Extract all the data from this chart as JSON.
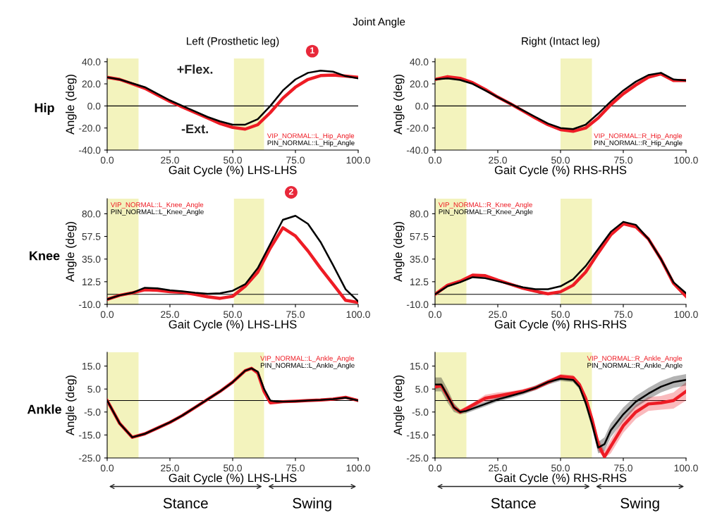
{
  "chart_data": [
    {
      "type": "line",
      "title": "Left (Prosthetic leg)",
      "xlabel": "Gait Cycle (%) LHS-LHS",
      "ylabel": "Angle (deg)",
      "annotations": [
        "Joint Angle",
        "Hip",
        "+Flex.",
        "-Ext.",
        "1"
      ],
      "x": [
        0,
        5,
        10,
        15,
        20,
        25,
        30,
        35,
        40,
        45,
        50,
        55,
        60,
        65,
        70,
        75,
        80,
        85,
        90,
        95,
        100
      ],
      "xlim": [
        0,
        100
      ],
      "xticks": [
        {
          "value": 0,
          "label": "0.0"
        },
        {
          "value": 25,
          "label": "25.0"
        },
        {
          "value": 50,
          "label": "50.0"
        },
        {
          "value": 75,
          "label": "75.0"
        },
        {
          "value": 100,
          "label": "100.0"
        }
      ],
      "ylim": [
        -40,
        43
      ],
      "yticks": [
        {
          "value": -40,
          "label": "-40.0"
        },
        {
          "value": -20,
          "label": "-20.0"
        },
        {
          "value": 0,
          "label": "0.0"
        },
        {
          "value": 20,
          "label": "20.0"
        },
        {
          "value": 40,
          "label": "40.0"
        }
      ],
      "bands": [
        {
          "axis": "x",
          "from": 0,
          "to": 12.5,
          "color": "#f3f3bd"
        },
        {
          "axis": "x",
          "from": 50.5,
          "to": 62.5,
          "color": "#f3f3bd"
        }
      ],
      "ref_lines": [
        {
          "axis": "y",
          "value": 0,
          "color": "#000000"
        }
      ],
      "legend": "bottom right",
      "grid": false,
      "marker": "none",
      "line_style": "solid",
      "series": [
        {
          "name": "VIP_NORMAL::L_Hip_Angle",
          "color": "#ee1c25",
          "values": [
            26,
            24,
            20,
            16,
            10,
            4,
            -1,
            -6,
            -11,
            -16,
            -19.5,
            -21,
            -17,
            -6,
            7,
            17,
            24,
            27.5,
            28,
            27,
            26
          ]
        },
        {
          "name": "PIN_NORMAL::L_Hip_Angle",
          "color": "#000000",
          "values": [
            26,
            24,
            20.5,
            17,
            11,
            5,
            0,
            -5,
            -10,
            -14,
            -17,
            -17,
            -12,
            0,
            14,
            24,
            30,
            32,
            31,
            27,
            25
          ]
        }
      ]
    },
    {
      "type": "line",
      "title": "Right (Intact leg)",
      "xlabel": "Gait Cycle (%) RHS-RHS",
      "ylabel": "Angle (deg)",
      "x": [
        0,
        5,
        10,
        15,
        20,
        25,
        30,
        35,
        40,
        45,
        50,
        55,
        60,
        65,
        70,
        75,
        80,
        85,
        90,
        95,
        100
      ],
      "xlim": [
        0,
        100
      ],
      "xticks": [
        {
          "value": 0,
          "label": "0.0"
        },
        {
          "value": 25,
          "label": "25.0"
        },
        {
          "value": 50,
          "label": "50.0"
        },
        {
          "value": 75,
          "label": "75.0"
        },
        {
          "value": 100,
          "label": "100.0"
        }
      ],
      "ylim": [
        -40,
        43
      ],
      "yticks": [
        {
          "value": -40,
          "label": "-40.0"
        },
        {
          "value": -20,
          "label": "-20.0"
        },
        {
          "value": 0,
          "label": "0.0"
        },
        {
          "value": 20,
          "label": "20.0"
        },
        {
          "value": 40,
          "label": "40.0"
        }
      ],
      "bands": [
        {
          "axis": "x",
          "from": 0,
          "to": 12.5,
          "color": "#f3f3bd"
        },
        {
          "axis": "x",
          "from": 50,
          "to": 62.5,
          "color": "#f3f3bd"
        }
      ],
      "ref_lines": [
        {
          "axis": "y",
          "value": 0,
          "color": "#000000"
        }
      ],
      "legend": "bottom right",
      "grid": false,
      "marker": "none",
      "line_style": "solid",
      "series": [
        {
          "name": "VIP_NORMAL::R_Hip_Angle",
          "color": "#ee1c25",
          "values": [
            24,
            26.5,
            25,
            21,
            15,
            8,
            2,
            -4.5,
            -11,
            -17,
            -21.5,
            -23,
            -20,
            -11,
            1,
            11,
            19,
            26,
            29,
            23,
            23
          ]
        },
        {
          "name": "PIN_NORMAL::R_Hip_Angle",
          "color": "#000000",
          "values": [
            24,
            25,
            23.5,
            20,
            14,
            8,
            2,
            -4,
            -10,
            -16,
            -20,
            -21,
            -17,
            -7,
            4,
            14,
            22,
            28,
            30,
            24,
            23
          ]
        }
      ]
    },
    {
      "type": "line",
      "xlabel": "Gait Cycle (%) LHS-LHS",
      "ylabel": "Angle (deg)",
      "annotations": [
        "Knee",
        "2"
      ],
      "x": [
        0,
        5,
        10,
        15,
        20,
        25,
        30,
        35,
        40,
        45,
        50,
        55,
        60,
        65,
        70,
        75,
        80,
        85,
        90,
        95,
        100
      ],
      "xlim": [
        0,
        100
      ],
      "xticks": [
        {
          "value": 0,
          "label": "0.0"
        },
        {
          "value": 25,
          "label": "25.0"
        },
        {
          "value": 50,
          "label": "50.0"
        },
        {
          "value": 75,
          "label": "75.0"
        },
        {
          "value": 100,
          "label": "100.0"
        }
      ],
      "ylim": [
        -10,
        95
      ],
      "yticks": [
        {
          "value": -10,
          "label": "-10.0"
        },
        {
          "value": 12.5,
          "label": "12.5"
        },
        {
          "value": 35,
          "label": "35.0"
        },
        {
          "value": 57.5,
          "label": "57.5"
        },
        {
          "value": 80,
          "label": "80.0"
        }
      ],
      "bands": [
        {
          "axis": "x",
          "from": 0,
          "to": 12.5,
          "color": "#f3f3bd"
        },
        {
          "axis": "x",
          "from": 50.5,
          "to": 62.5,
          "color": "#f3f3bd"
        }
      ],
      "ref_lines": [
        {
          "axis": "y",
          "value": 0,
          "color": "#000000"
        }
      ],
      "legend": "top left",
      "grid": false,
      "marker": "none",
      "line_style": "solid",
      "series": [
        {
          "name": "VIP_NORMAL::L_Knee_Angle",
          "color": "#ee1c25",
          "values": [
            -5,
            -1,
            1.5,
            4.5,
            4,
            2.5,
            2,
            0,
            -2.5,
            -4,
            -2,
            8,
            22,
            46,
            66,
            58,
            43,
            26,
            10,
            -6,
            -8
          ]
        },
        {
          "name": "PIN_NORMAL::L_Knee_Angle",
          "color": "#000000",
          "values": [
            -5,
            -1,
            1.5,
            6.5,
            6,
            4,
            3,
            1.5,
            0.5,
            1,
            3.5,
            10,
            26,
            50,
            74,
            78,
            70,
            52,
            29,
            5,
            -7
          ]
        }
      ]
    },
    {
      "type": "line",
      "xlabel": "Gait Cycle (%) RHS-RHS",
      "ylabel": "Angle (deg)",
      "x": [
        0,
        5,
        10,
        15,
        20,
        25,
        30,
        35,
        40,
        45,
        50,
        55,
        60,
        65,
        70,
        75,
        80,
        85,
        90,
        95,
        100
      ],
      "xlim": [
        0,
        100
      ],
      "xticks": [
        {
          "value": 0,
          "label": "0.0"
        },
        {
          "value": 25,
          "label": "25.0"
        },
        {
          "value": 50,
          "label": "50.0"
        },
        {
          "value": 75,
          "label": "75.0"
        },
        {
          "value": 100,
          "label": "100.0"
        }
      ],
      "ylim": [
        -10,
        95
      ],
      "yticks": [
        {
          "value": -10,
          "label": "-10.0"
        },
        {
          "value": 12.5,
          "label": "12.5"
        },
        {
          "value": 35,
          "label": "35.0"
        },
        {
          "value": 57.5,
          "label": "57.5"
        },
        {
          "value": 80,
          "label": "80.0"
        }
      ],
      "bands": [
        {
          "axis": "x",
          "from": 0,
          "to": 12.5,
          "color": "#f3f3bd"
        },
        {
          "axis": "x",
          "from": 50,
          "to": 62.5,
          "color": "#f3f3bd"
        }
      ],
      "ref_lines": [
        {
          "axis": "y",
          "value": 0,
          "color": "#000000"
        }
      ],
      "legend": "top left",
      "grid": false,
      "marker": "none",
      "line_style": "solid",
      "series": [
        {
          "name": "VIP_NORMAL::R_Knee_Angle",
          "color": "#ee1c25",
          "values": [
            0,
            9,
            13,
            19,
            18.5,
            14,
            10,
            6,
            3,
            0.5,
            2.5,
            9,
            22,
            41,
            59,
            70,
            67,
            55,
            35,
            11,
            -2
          ]
        },
        {
          "name": "PIN_NORMAL::R_Knee_Angle",
          "color": "#000000",
          "values": [
            0,
            8,
            12,
            17,
            16,
            13,
            10,
            7,
            5,
            5,
            8,
            15,
            28,
            45,
            62,
            72,
            69,
            55,
            35,
            12,
            1
          ]
        }
      ]
    },
    {
      "type": "line",
      "xlabel": "Gait Cycle (%) LHS-LHS",
      "ylabel": "Angle (deg)",
      "annotations": [
        "Stance",
        "Swing",
        "Ankle"
      ],
      "x": [
        0,
        5,
        10,
        15,
        20,
        25,
        30,
        35,
        40,
        45,
        50,
        55,
        57.5,
        60,
        62.5,
        65,
        67.5,
        70,
        75,
        80,
        85,
        90,
        95,
        100
      ],
      "xlim": [
        0,
        100
      ],
      "xticks": [
        {
          "value": 0,
          "label": "0.0"
        },
        {
          "value": 25,
          "label": "25.0"
        },
        {
          "value": 50,
          "label": "50.0"
        },
        {
          "value": 75,
          "label": "75.0"
        },
        {
          "value": 100,
          "label": "100.0"
        }
      ],
      "ylim": [
        -25,
        21
      ],
      "yticks": [
        {
          "value": -25,
          "label": "-25.0"
        },
        {
          "value": -15,
          "label": "-15.0"
        },
        {
          "value": -5,
          "label": "-5.0"
        },
        {
          "value": 5,
          "label": "5.0"
        },
        {
          "value": 15,
          "label": "15.0"
        }
      ],
      "bands": [
        {
          "axis": "x",
          "from": 0,
          "to": 12.5,
          "color": "#f3f3bd"
        },
        {
          "axis": "x",
          "from": 50.5,
          "to": 62.5,
          "color": "#f3f3bd"
        }
      ],
      "ref_lines": [
        {
          "axis": "y",
          "value": 0,
          "color": "#000000"
        }
      ],
      "legend": "top right",
      "grid": false,
      "marker": "none",
      "line_style": "solid",
      "series": [
        {
          "name": "VIP_NORMAL::L_Ankle_Angle",
          "color": "#ee1c25",
          "values": [
            0,
            -10,
            -16,
            -14.5,
            -12,
            -9.5,
            -6.5,
            -3,
            0.5,
            4,
            8,
            13,
            14,
            12,
            4,
            -1,
            -0.8,
            -0.5,
            -0.3,
            0,
            0.2,
            0.6,
            1.4,
            0
          ]
        },
        {
          "name": "PIN_NORMAL::L_Ankle_Angle",
          "color": "#000000",
          "values": [
            0,
            -10,
            -16,
            -14.5,
            -12,
            -9.5,
            -6.5,
            -3,
            0.5,
            4,
            8,
            13,
            14,
            12.5,
            5,
            0,
            -0.5,
            -0.5,
            -0.3,
            0,
            0.2,
            0.6,
            1.2,
            0
          ]
        }
      ]
    },
    {
      "type": "line",
      "xlabel": "Gait Cycle (%) RHS-RHS",
      "ylabel": "Angle (deg)",
      "annotations": [
        "Stance",
        "Swing"
      ],
      "x": [
        0,
        2.5,
        5,
        7.5,
        10,
        12.5,
        15,
        20,
        25,
        30,
        35,
        40,
        45,
        50,
        55,
        57.5,
        60,
        62.5,
        65,
        67.5,
        70,
        75,
        80,
        85,
        90,
        95,
        100
      ],
      "xlim": [
        0,
        100
      ],
      "xticks": [
        {
          "value": 0,
          "label": "0.0"
        },
        {
          "value": 25,
          "label": "25.0"
        },
        {
          "value": 50,
          "label": "50.0"
        },
        {
          "value": 75,
          "label": "75.0"
        },
        {
          "value": 100,
          "label": "100.0"
        }
      ],
      "ylim": [
        -25,
        21
      ],
      "yticks": [
        {
          "value": -25,
          "label": "-25.0"
        },
        {
          "value": -15,
          "label": "-15.0"
        },
        {
          "value": -5,
          "label": "-5.0"
        },
        {
          "value": 5,
          "label": "5.0"
        },
        {
          "value": 15,
          "label": "15.0"
        }
      ],
      "bands": [
        {
          "axis": "x",
          "from": 0,
          "to": 12.5,
          "color": "#f3f3bd"
        },
        {
          "axis": "x",
          "from": 50,
          "to": 62.5,
          "color": "#f3f3bd"
        }
      ],
      "ref_lines": [
        {
          "axis": "y",
          "value": 0,
          "color": "#000000"
        }
      ],
      "legend": "top right",
      "grid": false,
      "marker": "none",
      "line_style": "solid",
      "series": [
        {
          "name": "VIP_NORMAL::R_Ankle_Angle",
          "color": "#ee1c25",
          "values": [
            6,
            6.5,
            2,
            -3,
            -5,
            -3.5,
            -2,
            1,
            2,
            3,
            4,
            5.5,
            8,
            10.5,
            10,
            7,
            1,
            -8,
            -19,
            -24.5,
            -20,
            -11,
            -5,
            -1.5,
            -1,
            0,
            4
          ],
          "lower": [
            5,
            5.5,
            1,
            -4,
            -6,
            -4.5,
            -3,
            -0.5,
            0.5,
            2,
            3,
            4.5,
            7,
            9.5,
            9,
            6,
            -0.5,
            -10,
            -22,
            -25,
            -23,
            -14,
            -8,
            -4.5,
            -4,
            -3.5,
            0
          ],
          "upper": [
            7,
            7.5,
            3,
            -2,
            -4,
            -2.5,
            -1,
            2.5,
            3.5,
            4,
            5,
            6.5,
            9,
            11.5,
            11,
            8,
            2.5,
            -6,
            -16,
            -22,
            -17,
            -8,
            -2,
            1.5,
            2,
            3.5,
            8
          ]
        },
        {
          "name": "PIN_NORMAL::R_Ankle_Angle",
          "color": "#000000",
          "values": [
            7,
            7,
            2,
            -3,
            -5,
            -4.5,
            -3.5,
            -1.5,
            0.5,
            2,
            3.5,
            5.5,
            8,
            9.5,
            9,
            6,
            -1,
            -10,
            -20.5,
            -19,
            -13,
            -6,
            -0.5,
            3,
            6,
            8,
            9
          ],
          "lower": [
            4,
            4,
            -1,
            -5,
            -6,
            -5.5,
            -4.5,
            -2.5,
            -0.5,
            1,
            2.5,
            4.5,
            7,
            8.5,
            8,
            5,
            -2.5,
            -12,
            -23,
            -22,
            -16,
            -9,
            -3,
            0.5,
            3.5,
            5.5,
            6.5
          ],
          "upper": [
            10,
            10,
            5,
            -1,
            -4,
            -3.5,
            -2.5,
            -0.5,
            1.5,
            3,
            4.5,
            6.5,
            9,
            10.5,
            10,
            7,
            0.5,
            -8,
            -18,
            -16,
            -10,
            -3,
            2,
            5.5,
            8.5,
            10.5,
            11.5
          ]
        }
      ]
    }
  ]
}
